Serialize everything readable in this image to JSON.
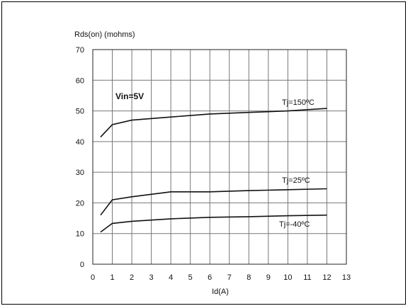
{
  "chart_data": {
    "type": "line",
    "title": "",
    "ylabel": "Rds(on) (mohms)",
    "xlabel": "Id(A)",
    "xlim": [
      0,
      13
    ],
    "ylim": [
      0,
      70
    ],
    "xticks": [
      "0",
      "1",
      "2",
      "3",
      "4",
      "5",
      "6",
      "7",
      "8",
      "9",
      "10",
      "11",
      "12",
      "13"
    ],
    "yticks": [
      "0",
      "10",
      "20",
      "30",
      "40",
      "50",
      "60",
      "70"
    ],
    "grid": true,
    "annotation": "Vin=5V",
    "series": [
      {
        "name": "Tj=150ºC",
        "x": [
          0.4,
          1,
          2,
          4,
          6,
          8,
          10,
          12
        ],
        "values": [
          41.5,
          45.5,
          47,
          48,
          49,
          49.5,
          50,
          50.8
        ]
      },
      {
        "name": "Tj=25ºC",
        "x": [
          0.4,
          1,
          2,
          4,
          6,
          8,
          10,
          12
        ],
        "values": [
          16,
          21,
          22,
          23.6,
          23.6,
          24,
          24.3,
          24.6
        ]
      },
      {
        "name": "Tj=-40ºC",
        "x": [
          0.4,
          1,
          2,
          4,
          6,
          8,
          10,
          12
        ],
        "values": [
          10.5,
          13.3,
          14,
          14.8,
          15.3,
          15.5,
          15.8,
          16
        ]
      }
    ],
    "colors": {
      "line": "#111111",
      "grid": "#777777"
    }
  }
}
